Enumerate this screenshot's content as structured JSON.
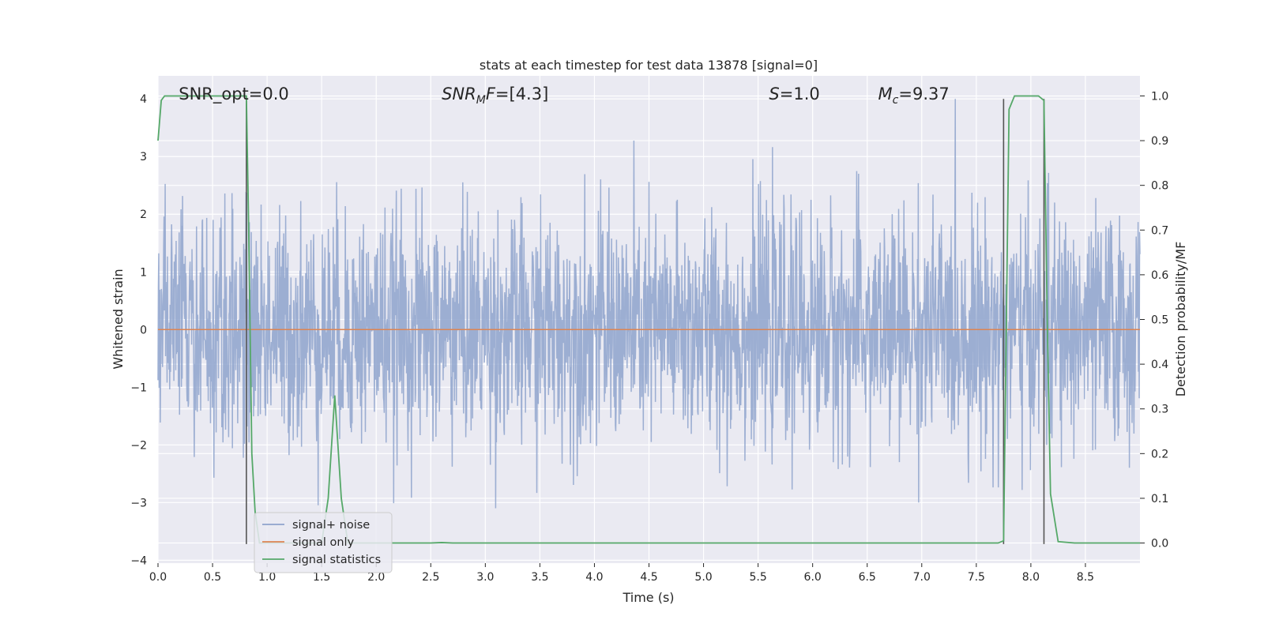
{
  "chart_data": {
    "type": "line",
    "title": "stats at each timestep for test data 13878 [signal=0]",
    "xlabel": "Time (s)",
    "ylabel_left": "Whitened strain",
    "ylabel_right": "Detection probability/MF",
    "xlim": [
      0.0,
      9.0
    ],
    "ylim_left": [
      -4.05,
      4.4
    ],
    "ylim_right": [
      -0.045,
      1.045
    ],
    "grid": true,
    "legend_position": "lower-left",
    "x_ticks": [
      "0.0",
      "0.5",
      "1.0",
      "1.5",
      "2.0",
      "2.5",
      "3.0",
      "3.5",
      "4.0",
      "4.5",
      "5.0",
      "5.5",
      "6.0",
      "6.5",
      "7.0",
      "7.5",
      "8.0",
      "8.5"
    ],
    "x_tick_values": [
      0.0,
      0.5,
      1.0,
      1.5,
      2.0,
      2.5,
      3.0,
      3.5,
      4.0,
      4.5,
      5.0,
      5.5,
      6.0,
      6.5,
      7.0,
      7.5,
      8.0,
      8.5
    ],
    "y_ticks_left": [
      "4",
      "3",
      "2",
      "1",
      "0",
      "−1",
      "−2",
      "−3",
      "−4"
    ],
    "y_tick_values_left": [
      4,
      3,
      2,
      1,
      0,
      -1,
      -2,
      -3,
      -4
    ],
    "y_ticks_right": [
      "1.0",
      "0.9",
      "0.8",
      "0.7",
      "0.6",
      "0.5",
      "0.4",
      "0.3",
      "0.2",
      "0.1",
      "0.0"
    ],
    "y_tick_values_right": [
      1.0,
      0.9,
      0.8,
      0.7,
      0.6,
      0.5,
      0.4,
      0.3,
      0.2,
      0.1,
      0.0
    ],
    "annotations": [
      {
        "text": "SNR_opt=0.0",
        "x": 0.19,
        "y": 4.1
      },
      {
        "text": "SNRMF=[4.3]",
        "x": 2.6,
        "y": 4.1
      },
      {
        "text": "S=1.0",
        "x": 5.6,
        "y": 4.1
      },
      {
        "text": "Mc=9.37",
        "x": 6.6,
        "y": 4.1
      }
    ],
    "vertical_lines": [
      0.81,
      7.75,
      8.12
    ],
    "series": [
      {
        "name": "signal+ noise",
        "color": "#8ea3cc",
        "kind": "noise",
        "x_range": [
          0.0,
          9.0
        ],
        "typical_amplitude": 1.6,
        "peak_max": 4.0,
        "peak_min": -3.72
      },
      {
        "name": "signal only",
        "color": "#dd8452",
        "x": [
          0.0,
          9.0
        ],
        "y": [
          0.0,
          0.0
        ]
      },
      {
        "name": "signal statistics",
        "color": "#55a868",
        "axis": "right",
        "x": [
          0.0,
          0.03,
          0.06,
          0.12,
          0.2,
          0.3,
          0.4,
          0.5,
          0.6,
          0.7,
          0.81,
          0.83,
          0.86,
          0.89,
          0.93,
          1.0,
          1.1,
          1.2,
          1.3,
          1.4,
          1.5,
          1.56,
          1.62,
          1.68,
          1.74,
          1.8,
          2.0,
          2.5,
          2.6,
          2.7,
          3.0,
          4.0,
          5.0,
          6.0,
          7.0,
          7.5,
          7.7,
          7.75,
          7.8,
          7.85,
          7.9,
          8.0,
          8.07,
          8.12,
          8.15,
          8.18,
          8.25,
          8.4,
          9.0
        ],
        "y": [
          0.9,
          0.99,
          1.0,
          1.0,
          1.0,
          1.0,
          1.0,
          1.0,
          1.0,
          1.0,
          1.0,
          0.72,
          0.2,
          0.07,
          0.0,
          0.0,
          0.0,
          0.0,
          0.0,
          0.0,
          0.0,
          0.1,
          0.33,
          0.1,
          0.0,
          0.0,
          0.0,
          0.0,
          0.001,
          0.0,
          0.0,
          0.0,
          0.0,
          0.0,
          0.0,
          0.0,
          0.0,
          0.005,
          0.97,
          1.0,
          1.0,
          1.0,
          1.0,
          0.99,
          0.5,
          0.11,
          0.003,
          0.0,
          0.0
        ]
      }
    ]
  }
}
